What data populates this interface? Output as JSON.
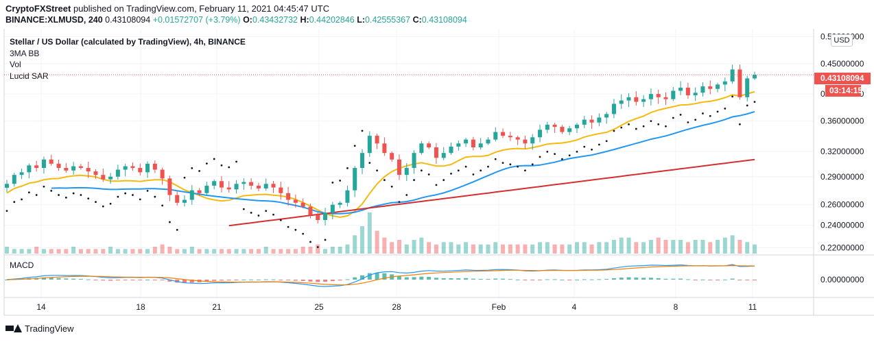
{
  "header": {
    "publisher": "CryptoFXStreet",
    "published_text": "published on TradingView.com, February 11, 2021 04:45:47 UTC",
    "symbol_line": "BINANCE:XLMUSD, 240",
    "last": "0.43108094",
    "change": "+0.01572707 (+3.79%)",
    "o_label": "O:",
    "o_value": "0.43432732",
    "h_label": "H:",
    "h_value": "0.44202846",
    "l_label": "L:",
    "l_value": "0.42555367",
    "c_label": "C:",
    "c_value": "0.43108094"
  },
  "legend": {
    "title": "Stellar / US Dollar (calculated by TradingView), 4h, BINANCE",
    "ind1": "3MA BB",
    "ind2": "Vol",
    "ind3": "Lucid SAR"
  },
  "price_axis": {
    "currency": "USD",
    "labels": [
      "0.50000000",
      "0.45000000",
      "0.40000000",
      "0.36000000",
      "0.32000000",
      "0.29000000",
      "0.26000000",
      "0.24000000",
      "0.22000000"
    ],
    "current_price": "0.43108094",
    "countdown": "03:14:15"
  },
  "macd": {
    "title": "MACD",
    "zero_label": "0.00000000"
  },
  "time_axis": {
    "labels": [
      "14",
      "18",
      "21",
      "25",
      "28",
      "Feb",
      "4",
      "8",
      "11"
    ]
  },
  "footer": {
    "brand": "TradingView"
  },
  "colors": {
    "up": "#26a69a",
    "down": "#ef5350",
    "ma_yellow": "#f5b90f",
    "ma_blue": "#2196f3",
    "ma_red": "#d32f2f",
    "macd_line": "#2196f3",
    "signal_line": "#f57c00",
    "price_tag": "#ef5350"
  },
  "chart_data": {
    "type": "candlestick",
    "title": "Stellar / US Dollar (calculated by TradingView), 4h, BINANCE",
    "y_scale": "log",
    "ylim": [
      0.215,
      0.51
    ],
    "x_labels": [
      "14",
      "18",
      "21",
      "25",
      "28",
      "Feb",
      "4",
      "8",
      "11"
    ],
    "candles_close": [
      0.282,
      0.292,
      0.295,
      0.303,
      0.3,
      0.31,
      0.305,
      0.3,
      0.297,
      0.302,
      0.3,
      0.296,
      0.292,
      0.287,
      0.29,
      0.298,
      0.302,
      0.3,
      0.295,
      0.305,
      0.298,
      0.288,
      0.27,
      0.262,
      0.265,
      0.275,
      0.272,
      0.28,
      0.285,
      0.278,
      0.276,
      0.282,
      0.284,
      0.28,
      0.277,
      0.282,
      0.278,
      0.272,
      0.265,
      0.262,
      0.258,
      0.25,
      0.245,
      0.252,
      0.26,
      0.262,
      0.275,
      0.3,
      0.318,
      0.34,
      0.33,
      0.318,
      0.31,
      0.292,
      0.3,
      0.318,
      0.33,
      0.325,
      0.312,
      0.318,
      0.326,
      0.33,
      0.335,
      0.325,
      0.33,
      0.335,
      0.345,
      0.34,
      0.338,
      0.335,
      0.33,
      0.338,
      0.348,
      0.355,
      0.352,
      0.345,
      0.35,
      0.355,
      0.362,
      0.358,
      0.365,
      0.37,
      0.385,
      0.39,
      0.395,
      0.388,
      0.392,
      0.4,
      0.395,
      0.392,
      0.405,
      0.41,
      0.398,
      0.402,
      0.412,
      0.408,
      0.415,
      0.42,
      0.44,
      0.395,
      0.425,
      0.431
    ],
    "volume": {
      "max_ratio_note": "relative",
      "values": [
        3,
        2,
        2,
        2,
        3,
        2,
        2,
        2,
        2,
        3,
        2,
        2,
        2,
        2,
        3,
        2,
        2,
        2,
        2,
        2,
        3,
        4,
        3,
        2,
        2,
        3,
        2,
        2,
        2,
        2,
        2,
        2,
        2,
        2,
        2,
        3,
        2,
        2,
        2,
        2,
        3,
        3,
        4,
        2,
        3,
        3,
        4,
        8,
        12,
        18,
        10,
        7,
        5,
        6,
        4,
        6,
        7,
        5,
        4,
        5,
        5,
        4,
        5,
        4,
        4,
        4,
        5,
        4,
        4,
        4,
        4,
        4,
        5,
        5,
        4,
        4,
        4,
        5,
        5,
        4,
        5,
        5,
        6,
        7,
        7,
        5,
        5,
        6,
        7,
        6,
        6,
        6,
        5,
        6,
        6,
        5,
        6,
        7,
        8,
        6,
        5,
        4
      ]
    },
    "indicators": [
      "3MA BB",
      "Vol",
      "Lucid SAR",
      "MACD"
    ],
    "grid": true
  }
}
